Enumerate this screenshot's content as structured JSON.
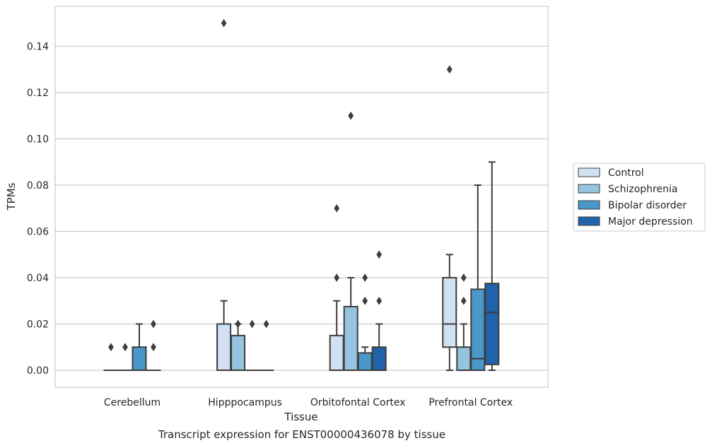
{
  "caption": "Transcript expression for ENST00000436078 by tissue",
  "chart_data": {
    "type": "boxplot",
    "xlabel": "Tissue",
    "ylabel": "TPMs",
    "ylim": [
      -0.0075,
      0.157
    ],
    "yticks": [
      0.0,
      0.02,
      0.04,
      0.06,
      0.08,
      0.1,
      0.12,
      0.14
    ],
    "ytick_labels": [
      "0.00",
      "0.02",
      "0.04",
      "0.06",
      "0.08",
      "0.10",
      "0.12",
      "0.14"
    ],
    "grid": true,
    "legend_position": "right",
    "categories": [
      "Cerebellum",
      "Hipppocampus",
      "Orbitofontal Cortex",
      "Prefrontal Cortex"
    ],
    "series": [
      {
        "name": "Control",
        "color": "#d0e1f2",
        "boxes": [
          {
            "q1": 0,
            "median": 0,
            "q3": 0,
            "whisker_low": 0,
            "whisker_high": 0,
            "outliers": [
              0.01
            ]
          },
          {
            "q1": 0,
            "median": 0,
            "q3": 0.02,
            "whisker_low": 0,
            "whisker_high": 0.03,
            "outliers": [
              0.15
            ]
          },
          {
            "q1": 0,
            "median": 0,
            "q3": 0.015,
            "whisker_low": 0,
            "whisker_high": 0.03,
            "outliers": [
              0.04,
              0.07
            ]
          },
          {
            "q1": 0.01,
            "median": 0.02,
            "q3": 0.04,
            "whisker_low": 0,
            "whisker_high": 0.05,
            "outliers": [
              0.13
            ]
          }
        ]
      },
      {
        "name": "Schizophrenia",
        "color": "#94c4df",
        "boxes": [
          {
            "q1": 0,
            "median": 0,
            "q3": 0,
            "whisker_low": 0,
            "whisker_high": 0,
            "outliers": [
              0.01
            ]
          },
          {
            "q1": 0,
            "median": 0,
            "q3": 0.015,
            "whisker_low": 0,
            "whisker_high": 0.02,
            "outliers": [
              0.02
            ]
          },
          {
            "q1": 0,
            "median": 0,
            "q3": 0.0275,
            "whisker_low": 0,
            "whisker_high": 0.04,
            "outliers": [
              0.11
            ]
          },
          {
            "q1": 0,
            "median": 0,
            "q3": 0.01,
            "whisker_low": 0,
            "whisker_high": 0.02,
            "outliers": [
              0.03,
              0.04
            ]
          }
        ]
      },
      {
        "name": "Bipolar disorder",
        "color": "#4a98c9",
        "boxes": [
          {
            "q1": 0,
            "median": 0,
            "q3": 0.01,
            "whisker_low": 0,
            "whisker_high": 0.02,
            "outliers": []
          },
          {
            "q1": 0,
            "median": 0,
            "q3": 0,
            "whisker_low": 0,
            "whisker_high": 0,
            "outliers": [
              0.02
            ]
          },
          {
            "q1": 0,
            "median": 0,
            "q3": 0.0075,
            "whisker_low": 0,
            "whisker_high": 0.01,
            "outliers": [
              0.03,
              0.04
            ]
          },
          {
            "q1": 0,
            "median": 0.005,
            "q3": 0.035,
            "whisker_low": 0,
            "whisker_high": 0.08,
            "outliers": []
          }
        ]
      },
      {
        "name": "Major depression",
        "color": "#2063ab",
        "boxes": [
          {
            "q1": 0,
            "median": 0,
            "q3": 0,
            "whisker_low": 0,
            "whisker_high": 0,
            "outliers": [
              0.01,
              0.02
            ]
          },
          {
            "q1": 0,
            "median": 0,
            "q3": 0,
            "whisker_low": 0,
            "whisker_high": 0,
            "outliers": [
              0.02
            ]
          },
          {
            "q1": 0,
            "median": 0,
            "q3": 0.01,
            "whisker_low": 0,
            "whisker_high": 0.02,
            "outliers": [
              0.03,
              0.05
            ]
          },
          {
            "q1": 0.0025,
            "median": 0.025,
            "q3": 0.0375,
            "whisker_low": 0,
            "whisker_high": 0.09,
            "outliers": []
          }
        ]
      }
    ]
  }
}
